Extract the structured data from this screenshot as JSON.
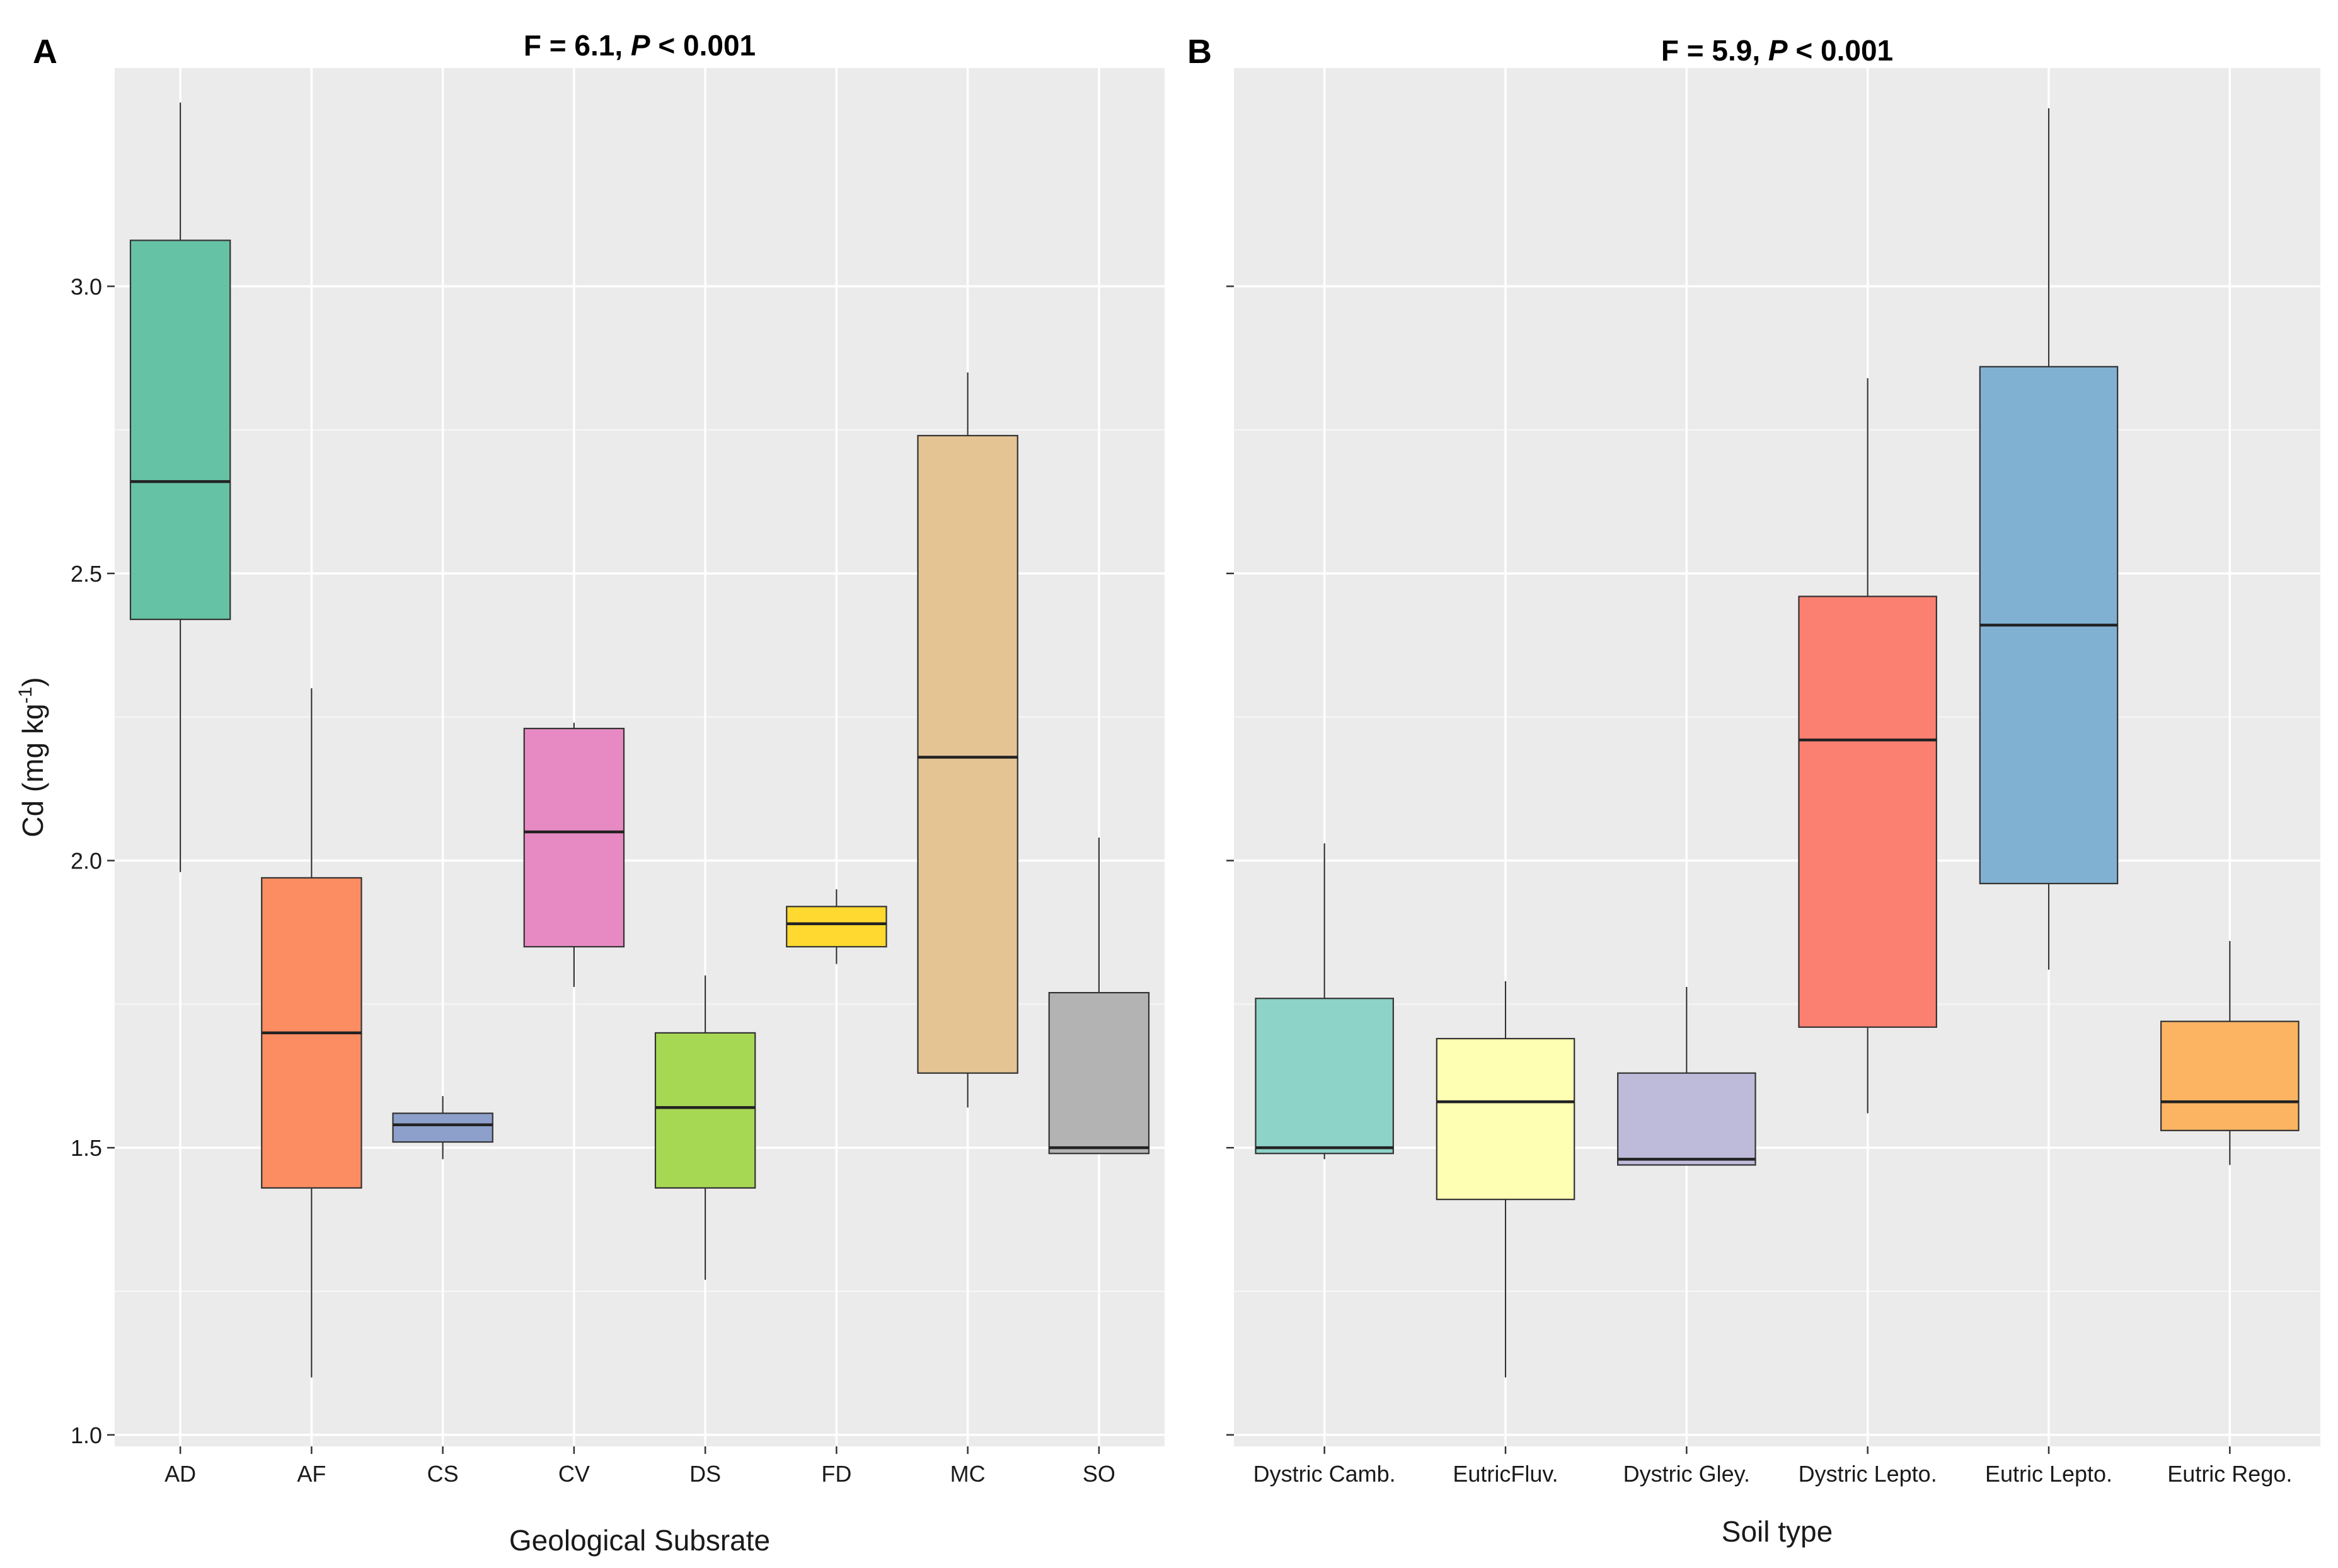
{
  "chart_data": [
    {
      "type": "boxplot",
      "panel_label": "A",
      "title": {
        "prefix": "F = 6.1, ",
        "italic": "P",
        "suffix": " < 0.001"
      },
      "xlabel": "Geological Subsrate",
      "ylabel": {
        "main": "Cd (mg kg",
        "sup": "-1",
        "end": ")"
      },
      "ylim": [
        0.98,
        3.38
      ],
      "yticks": [
        1.0,
        1.5,
        2.0,
        2.5,
        3.0
      ],
      "ytick_labels": [
        "1.0",
        "1.5",
        "2.0",
        "2.5",
        "3.0"
      ],
      "grid": true,
      "categories": [
        "AD",
        "AF",
        "CS",
        "CV",
        "DS",
        "FD",
        "MC",
        "SO"
      ],
      "boxes": [
        {
          "category": "AD",
          "min": 1.98,
          "q1": 2.42,
          "median": 2.66,
          "q3": 3.08,
          "max": 3.32,
          "color": "#66c2a5"
        },
        {
          "category": "AF",
          "min": 1.1,
          "q1": 1.43,
          "median": 1.7,
          "q3": 1.97,
          "max": 2.3,
          "color": "#fc8d62"
        },
        {
          "category": "CS",
          "min": 1.48,
          "q1": 1.51,
          "median": 1.54,
          "q3": 1.56,
          "max": 1.59,
          "color": "#8da0cb"
        },
        {
          "category": "CV",
          "min": 1.78,
          "q1": 1.85,
          "median": 2.05,
          "q3": 2.23,
          "max": 2.24,
          "color": "#e78ac3"
        },
        {
          "category": "DS",
          "min": 1.27,
          "q1": 1.43,
          "median": 1.57,
          "q3": 1.7,
          "max": 1.8,
          "color": "#a6d854"
        },
        {
          "category": "FD",
          "min": 1.82,
          "q1": 1.85,
          "median": 1.89,
          "q3": 1.92,
          "max": 1.95,
          "color": "#ffd92f"
        },
        {
          "category": "MC",
          "min": 1.57,
          "q1": 1.63,
          "median": 2.18,
          "q3": 2.74,
          "max": 2.85,
          "color": "#e5c494"
        },
        {
          "category": "SO",
          "min": 1.49,
          "q1": 1.49,
          "median": 1.5,
          "q3": 1.77,
          "max": 2.04,
          "color": "#b3b3b3"
        }
      ]
    },
    {
      "type": "boxplot",
      "panel_label": "B",
      "title": {
        "prefix": "F = 5.9, ",
        "italic": "P",
        "suffix": " < 0.001"
      },
      "xlabel": "Soil type",
      "ylim": [
        0.98,
        3.38
      ],
      "yticks": [
        1.0,
        1.5,
        2.0,
        2.5,
        3.0
      ],
      "grid": true,
      "categories": [
        "Dystric Camb.",
        "EutricFluv.",
        "Dystric Gley.",
        "Dystric Lepto.",
        "Eutric Lepto.",
        "Eutric Rego."
      ],
      "boxes": [
        {
          "category": "Dystric Camb.",
          "min": 1.48,
          "q1": 1.49,
          "median": 1.5,
          "q3": 1.76,
          "max": 2.03,
          "color": "#8dd3c7"
        },
        {
          "category": "EutricFluv.",
          "min": 1.1,
          "q1": 1.41,
          "median": 1.58,
          "q3": 1.69,
          "max": 1.79,
          "color": "#ffffb3"
        },
        {
          "category": "Dystric Gley.",
          "min": 1.47,
          "q1": 1.47,
          "median": 1.48,
          "q3": 1.63,
          "max": 1.78,
          "color": "#bebada"
        },
        {
          "category": "Dystric Lepto.",
          "min": 1.56,
          "q1": 1.71,
          "median": 2.21,
          "q3": 2.46,
          "max": 2.84,
          "color": "#fb8072"
        },
        {
          "category": "Eutric Lepto.",
          "min": 1.81,
          "q1": 1.96,
          "median": 2.41,
          "q3": 2.86,
          "max": 3.31,
          "color": "#80b1d3"
        },
        {
          "category": "Eutric Rego.",
          "min": 1.47,
          "q1": 1.53,
          "median": 1.58,
          "q3": 1.72,
          "max": 1.86,
          "color": "#fdb462"
        }
      ]
    }
  ]
}
